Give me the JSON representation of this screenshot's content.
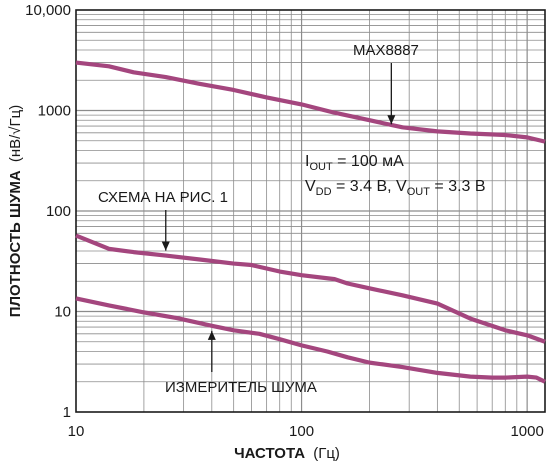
{
  "chart_data": {
    "type": "line",
    "xlabel": "ЧАСТОТА",
    "xlabel_unit": "(Гц)",
    "ylabel": "ПЛОТНОСТЬ ШУМА",
    "ylabel_unit": "(нВ/√Гц)",
    "x_scale": "log",
    "y_scale": "log",
    "xlim": [
      10,
      1200
    ],
    "ylim": [
      1,
      10000
    ],
    "grid": true,
    "x_ticks": [
      {
        "value": 10,
        "label": "10"
      },
      {
        "value": 100,
        "label": "100"
      },
      {
        "value": 1000,
        "label": "1000"
      }
    ],
    "y_ticks": [
      {
        "value": 1,
        "label": "1"
      },
      {
        "value": 10,
        "label": "10"
      },
      {
        "value": 100,
        "label": "100"
      },
      {
        "value": 1000,
        "label": "1000"
      },
      {
        "value": 10000,
        "label": "10,000"
      }
    ],
    "series": [
      {
        "name": "MAX8887",
        "color": "#a4467e",
        "x": [
          10,
          14,
          18,
          25,
          35,
          50,
          70,
          100,
          140,
          200,
          280,
          400,
          560,
          800,
          1000,
          1200
        ],
        "y": [
          3000,
          2750,
          2400,
          2150,
          1850,
          1600,
          1350,
          1150,
          950,
          800,
          680,
          620,
          590,
          570,
          540,
          490
        ]
      },
      {
        "name": "СХЕМА НА РИС. 1",
        "color": "#a4467e",
        "x": [
          10,
          14,
          18,
          25,
          35,
          50,
          60,
          80,
          100,
          140,
          160,
          200,
          280,
          400,
          560,
          800,
          1000,
          1200
        ],
        "y": [
          57,
          42,
          39,
          36,
          33,
          30,
          29,
          25,
          23,
          21,
          19,
          17,
          14.5,
          12,
          8.5,
          6.5,
          5.8,
          5
        ]
      },
      {
        "name": "ИЗМЕРИТЕЛЬ ШУМА",
        "color": "#a4467e",
        "x": [
          10,
          14,
          20,
          28,
          40,
          50,
          65,
          80,
          100,
          130,
          160,
          200,
          280,
          400,
          560,
          700,
          800,
          1000,
          1100,
          1200
        ],
        "y": [
          13.5,
          11.5,
          9.8,
          8.6,
          7.2,
          6.5,
          6,
          5.3,
          4.6,
          4,
          3.5,
          3.1,
          2.8,
          2.45,
          2.25,
          2.2,
          2.2,
          2.25,
          2.2,
          2
        ]
      }
    ],
    "annotations": [
      {
        "text": "MAX8887",
        "points_to": {
          "x": 250,
          "y": 650
        }
      },
      {
        "text": "СХЕМА НА РИС. 1",
        "points_to": {
          "x": 25,
          "y": 36
        }
      },
      {
        "text": "ИЗМЕРИТЕЛЬ ШУМА",
        "points_to": {
          "x": 40,
          "y": 7.2
        }
      }
    ],
    "conditions": [
      {
        "prefix": "I",
        "sub": "OUT",
        "rest": " = 100 мА"
      },
      {
        "line": [
          {
            "t": "V"
          },
          {
            "t": "DD",
            "sub": true
          },
          {
            "t": " = 3.4 В, V"
          },
          {
            "t": "OUT",
            "sub": true
          },
          {
            "t": " = 3.3 В"
          }
        ]
      }
    ]
  }
}
